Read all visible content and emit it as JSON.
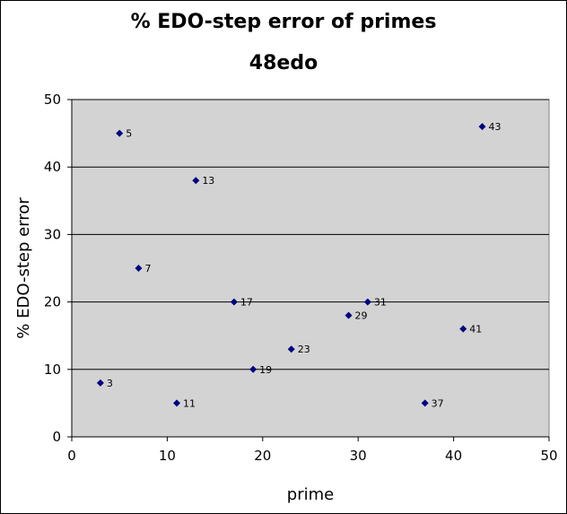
{
  "chart_data": {
    "type": "scatter",
    "title": "% EDO-step error of primes",
    "subtitle": "48edo",
    "xlabel": "prime",
    "ylabel": "% EDO-step error",
    "xlim": [
      0,
      50
    ],
    "ylim": [
      0,
      50
    ],
    "xticks": [
      0,
      10,
      20,
      30,
      40,
      50
    ],
    "yticks": [
      0,
      10,
      20,
      30,
      40,
      50
    ],
    "grid": "horizontal",
    "plot_background": "#d3d3d3",
    "marker_color": "#000080",
    "points": [
      {
        "x": 3,
        "y": 8,
        "label": "3"
      },
      {
        "x": 5,
        "y": 45,
        "label": "5"
      },
      {
        "x": 7,
        "y": 25,
        "label": "7"
      },
      {
        "x": 11,
        "y": 5,
        "label": "11"
      },
      {
        "x": 13,
        "y": 38,
        "label": "13"
      },
      {
        "x": 17,
        "y": 20,
        "label": "17"
      },
      {
        "x": 19,
        "y": 10,
        "label": "19"
      },
      {
        "x": 23,
        "y": 13,
        "label": "23"
      },
      {
        "x": 29,
        "y": 18,
        "label": "29"
      },
      {
        "x": 31,
        "y": 20,
        "label": "31"
      },
      {
        "x": 37,
        "y": 5,
        "label": "37"
      },
      {
        "x": 41,
        "y": 16,
        "label": "41"
      },
      {
        "x": 43,
        "y": 46,
        "label": "43"
      }
    ]
  }
}
